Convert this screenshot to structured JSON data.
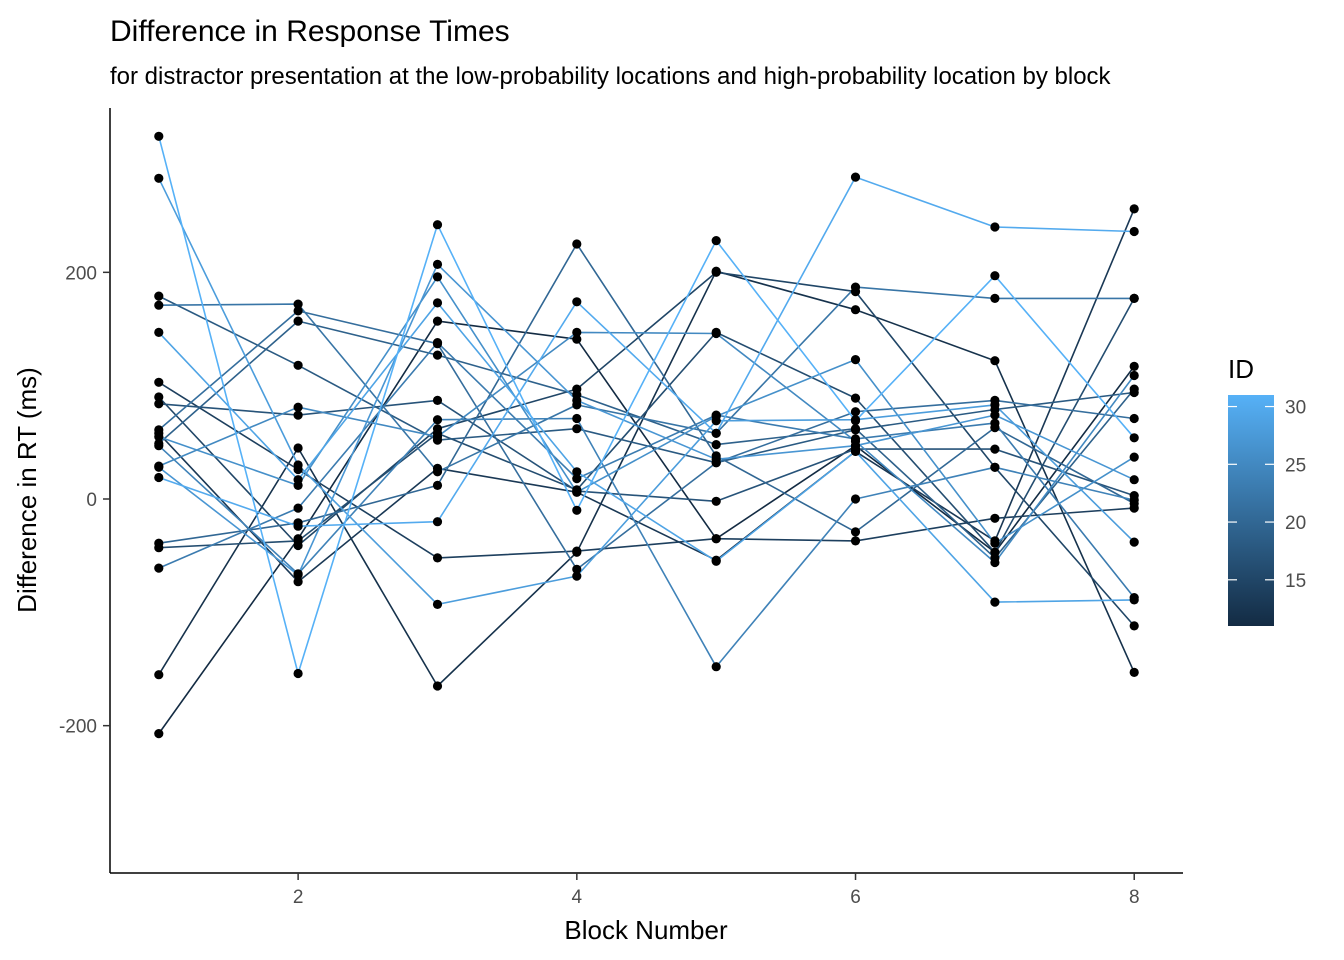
{
  "chart_data": {
    "type": "line",
    "title": "Difference in Response Times",
    "subtitle": "for distractor presentation at the low-probability locations and high-probability location by block",
    "xlabel": "Block Number",
    "ylabel": "Difference in RT (ms)",
    "x": [
      1,
      2,
      3,
      4,
      5,
      6,
      7,
      8
    ],
    "xlim": [
      0.65,
      8.35
    ],
    "ylim": [
      -330,
      345
    ],
    "xticks": [
      2,
      4,
      6,
      8
    ],
    "yticks": [
      -200,
      0,
      200
    ],
    "grid": false,
    "legend": {
      "title": "ID",
      "type": "colorbar",
      "position": "right",
      "range": [
        11,
        31
      ],
      "breaks": [
        15,
        20,
        25,
        30
      ],
      "low_color": "#132b43",
      "high_color": "#56b1f7"
    },
    "point_color": "#000000",
    "series": [
      {
        "id": 11,
        "values": [
          -207,
          -35,
          157,
          141,
          -35,
          47,
          -47,
          117
        ]
      },
      {
        "id": 12,
        "values": [
          -155,
          45,
          -165,
          -47,
          201,
          167,
          122,
          -153
        ]
      },
      {
        "id": 13,
        "values": [
          58,
          -73,
          27,
          6,
          -54,
          42,
          -37,
          256
        ]
      },
      {
        "id": 14,
        "values": [
          103,
          26,
          -52,
          -46,
          -35,
          -37,
          -17,
          -8
        ]
      },
      {
        "id": 15,
        "values": [
          90,
          -41,
          62,
          97,
          200,
          183,
          28,
          -112
        ]
      },
      {
        "id": 16,
        "values": [
          -43,
          -37,
          58,
          8,
          147,
          89,
          -47,
          177
        ]
      },
      {
        "id": 17,
        "values": [
          84,
          74,
          87,
          7,
          -2,
          44,
          44,
          3
        ]
      },
      {
        "id": 18,
        "values": [
          179,
          118,
          52,
          62,
          32,
          61,
          79,
          94
        ]
      },
      {
        "id": 19,
        "values": [
          49,
          157,
          127,
          92,
          48,
          62,
          -52,
          97
        ]
      },
      {
        "id": 20,
        "values": [
          -39,
          -21,
          12,
          225,
          38,
          -29,
          63,
          -4
        ]
      },
      {
        "id": 21,
        "values": [
          61,
          166,
          137,
          -62,
          32,
          77,
          87,
          71
        ]
      },
      {
        "id": 22,
        "values": [
          171,
          172,
          24,
          83,
          58,
          187,
          177,
          177
        ]
      },
      {
        "id": 23,
        "values": [
          -61,
          -8,
          138,
          18,
          74,
          53,
          67,
          -87
        ]
      },
      {
        "id": 24,
        "values": [
          47,
          -66,
          70,
          71,
          -148,
          0,
          28,
          -1
        ]
      },
      {
        "id": 25,
        "values": [
          29,
          81,
          55,
          147,
          146,
          51,
          -56,
          109
        ]
      },
      {
        "id": 26,
        "values": [
          55,
          12,
          196,
          6,
          73,
          123,
          -39,
          37
        ]
      },
      {
        "id": 27,
        "values": [
          28,
          -67,
          207,
          87,
          35,
          47,
          74,
          17
        ]
      },
      {
        "id": 28,
        "values": [
          283,
          30,
          -93,
          -68,
          69,
          70,
          83,
          -38
        ]
      },
      {
        "id": 29,
        "values": [
          147,
          17,
          173,
          24,
          -55,
          42,
          -91,
          -89
        ]
      },
      {
        "id": 30,
        "values": [
          19,
          -24,
          -20,
          174,
          58,
          284,
          240,
          236
        ]
      },
      {
        "id": 31,
        "values": [
          320,
          -154,
          242,
          -10,
          228,
          69,
          197,
          54
        ]
      }
    ]
  }
}
